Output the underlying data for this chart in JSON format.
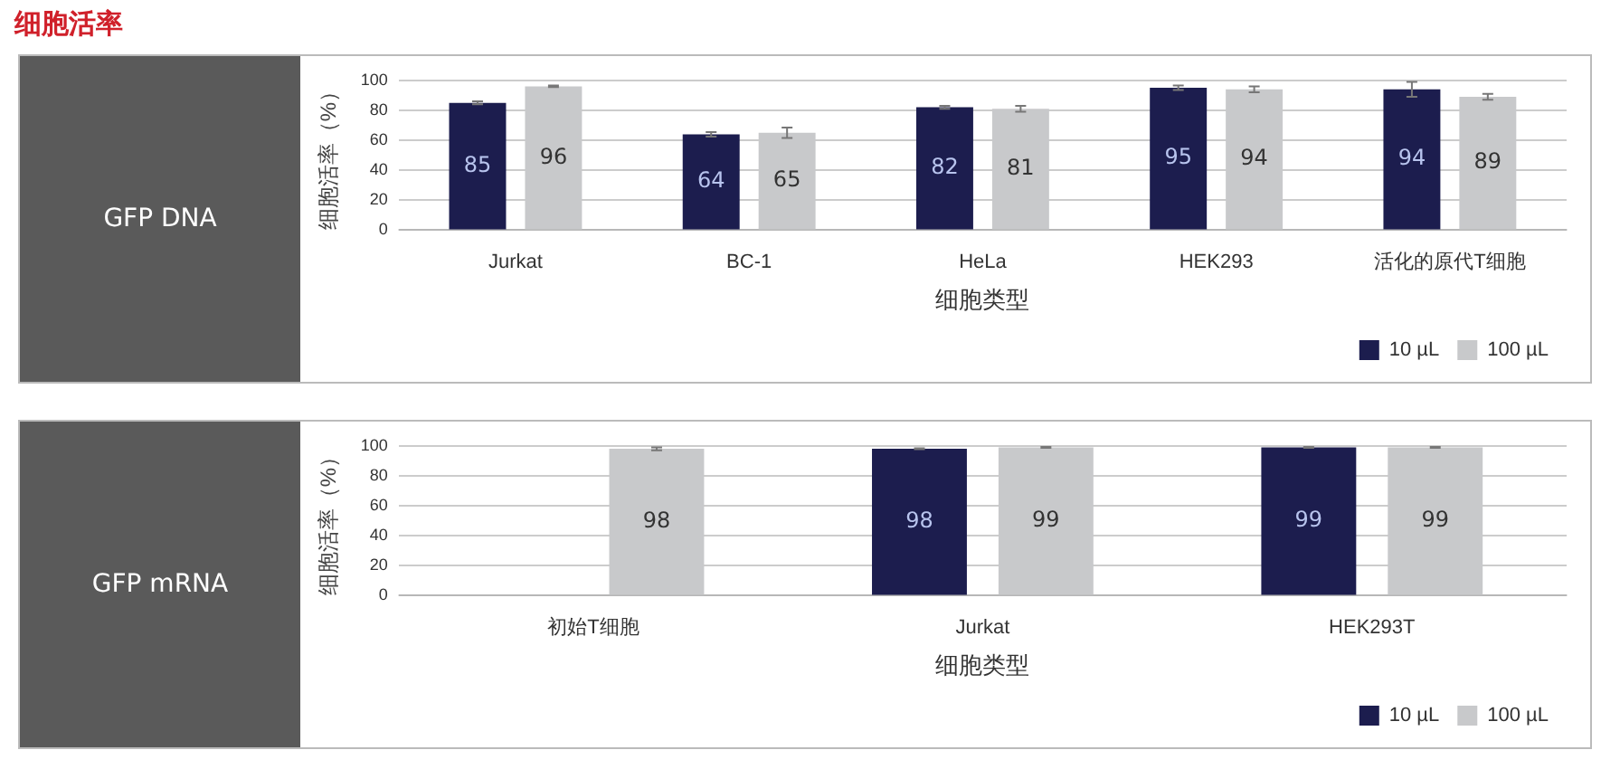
{
  "chart_data": [
    {
      "type": "bar",
      "title": "GFP DNA",
      "annotations": [
        "细胞活率"
      ],
      "xlabel": "细胞类型",
      "ylabel": "细胞活率（%）",
      "categories": [
        "Jurkat",
        "BC-1",
        "HeLa",
        "HEK293",
        "活化的原代T细胞"
      ],
      "series": [
        {
          "name": "10 µL",
          "color": "#1c1d4e",
          "values": [
            85,
            64,
            82,
            95,
            94
          ],
          "errors": [
            1,
            1.5,
            1,
            1.5,
            5
          ]
        },
        {
          "name": "100 µL",
          "color": "#c8c9cb",
          "values": [
            96,
            65,
            81,
            94,
            89
          ],
          "errors": [
            0.5,
            3.5,
            2,
            2,
            2
          ]
        }
      ],
      "ylim": [
        0,
        100
      ],
      "yticks": [
        0,
        20,
        40,
        60,
        80,
        100
      ],
      "grid": "y",
      "legend": "bottom right",
      "data_labels": true
    },
    {
      "type": "bar",
      "title": "GFP mRNA",
      "xlabel": "细胞类型",
      "ylabel": "细胞活率（%）",
      "categories": [
        "初始T细胞",
        "Jurkat",
        "HEK293T"
      ],
      "series": [
        {
          "name": "10 µL",
          "color": "#1c1d4e",
          "values": [
            null,
            98,
            99
          ],
          "errors": [
            null,
            0.3,
            0.3
          ]
        },
        {
          "name": "100 µL",
          "color": "#c8c9cb",
          "values": [
            98,
            99,
            99
          ],
          "errors": [
            1,
            0.3,
            0.3
          ]
        }
      ],
      "ylim": [
        0,
        100
      ],
      "yticks": [
        0,
        20,
        40,
        60,
        80,
        100
      ],
      "grid": "y",
      "legend": "bottom right",
      "data_labels": true
    }
  ]
}
